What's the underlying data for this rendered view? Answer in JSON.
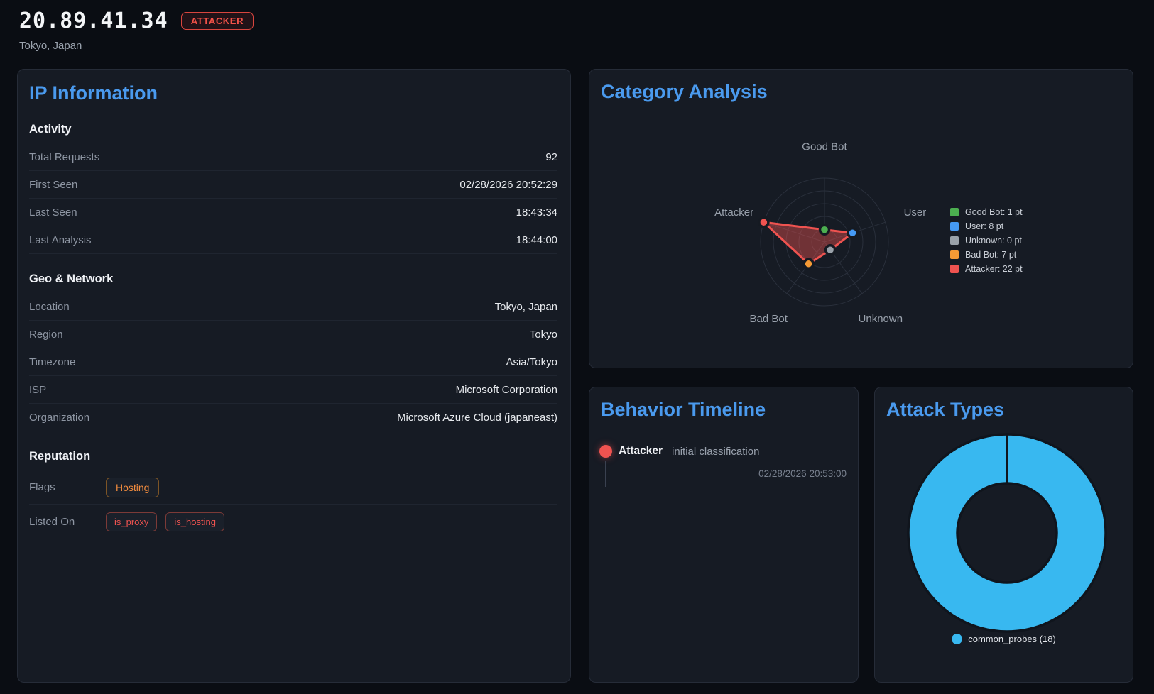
{
  "header": {
    "ip": "20.89.41.34",
    "badge": "ATTACKER",
    "location": "Tokyo, Japan"
  },
  "ip_info": {
    "title": "IP Information",
    "sections": [
      {
        "title": "Activity",
        "rows": [
          {
            "label": "Total Requests",
            "value": "92"
          },
          {
            "label": "First Seen",
            "value": "02/28/2026 20:52:29"
          },
          {
            "label": "Last Seen",
            "value": "18:43:34"
          },
          {
            "label": "Last Analysis",
            "value": "18:44:00"
          }
        ]
      },
      {
        "title": "Geo & Network",
        "rows": [
          {
            "label": "Location",
            "value": "Tokyo, Japan"
          },
          {
            "label": "Region",
            "value": "Tokyo"
          },
          {
            "label": "Timezone",
            "value": "Asia/Tokyo"
          },
          {
            "label": "ISP",
            "value": "Microsoft Corporation"
          },
          {
            "label": "Organization",
            "value": "Microsoft Azure Cloud (japaneast)"
          }
        ]
      },
      {
        "title": "Reputation",
        "flags_label": "Flags",
        "flags": [
          "Hosting"
        ],
        "listed_label": "Listed On",
        "listed": [
          "is_proxy",
          "is_hosting"
        ]
      }
    ]
  },
  "category": {
    "title": "Category Analysis"
  },
  "timeline": {
    "title": "Behavior Timeline",
    "events": [
      {
        "category": "Attacker",
        "note": "initial classification",
        "timestamp": "02/28/2026 20:53:00",
        "color": "#ef5350"
      }
    ]
  },
  "attack_types": {
    "title": "Attack Types"
  },
  "colors": {
    "accent_blue": "#4a9aee",
    "attacker_red": "#ef5350",
    "hosting_orange": "#f08b3e",
    "panel_bg": "#161b24",
    "page_bg": "#0a0d13"
  },
  "chart_data": [
    {
      "type": "radar",
      "title": "Category Analysis",
      "categories": [
        "Good Bot",
        "User",
        "Unknown",
        "Bad Bot",
        "Attacker"
      ],
      "values": [
        1,
        8,
        0,
        7,
        22
      ],
      "unit": "pt",
      "point_colors": [
        "#4caf50",
        "#459af5",
        "#9aa2aa",
        "#f59a35",
        "#ef5350"
      ],
      "series_color": "#ef5350",
      "axis_min": -4,
      "axis_max": 22,
      "rings": 5,
      "grid": true,
      "legend_position": "right",
      "legend": [
        "Good Bot: 1 pt",
        "User: 8 pt",
        "Unknown: 0 pt",
        "Bad Bot: 7 pt",
        "Attacker: 22 pt"
      ]
    },
    {
      "type": "pie",
      "title": "Attack Types",
      "cutout": 0.5,
      "slices": [
        {
          "label": "common_probes",
          "value": 18,
          "color": "#38b8f0"
        }
      ],
      "legend": [
        "common_probes (18)"
      ],
      "legend_position": "bottom",
      "border_color": "#10151d"
    }
  ]
}
